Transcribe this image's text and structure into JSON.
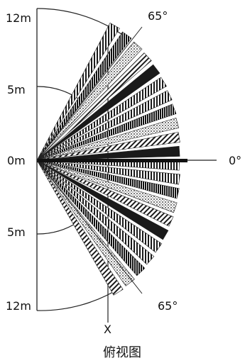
{
  "diagram": {
    "distance_labels": {
      "top_far": "12m",
      "top_mid": "5m",
      "center": "0m",
      "bottom_mid": "5m",
      "bottom_far": "12m"
    },
    "angle_labels": {
      "top": "65°",
      "right": "0°",
      "bottom": "65°"
    },
    "axis_label": "X",
    "caption": "俯视图",
    "line_color": "#222222",
    "fill_color": "#1a1a1a"
  }
}
